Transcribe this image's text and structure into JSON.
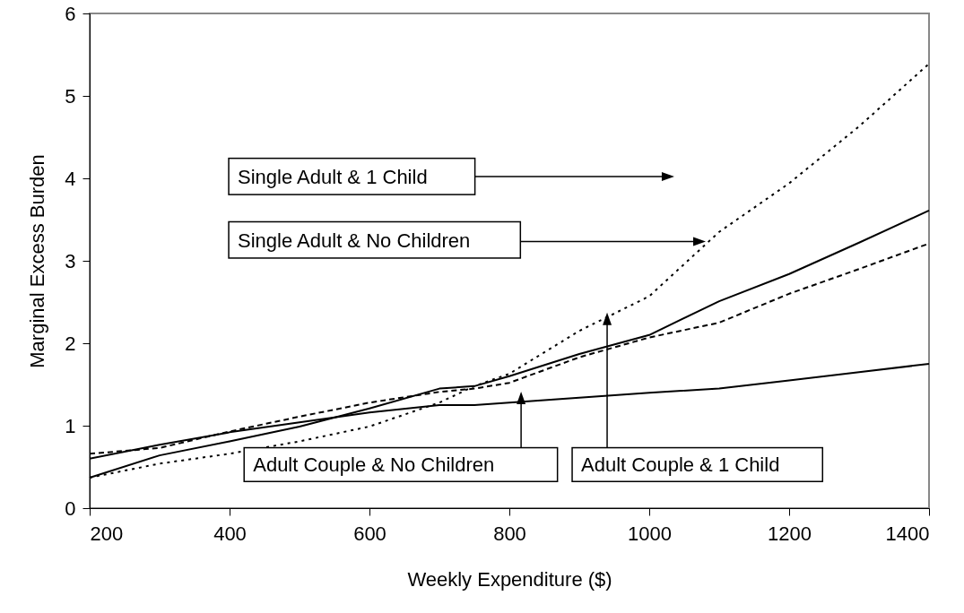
{
  "chart_data": {
    "type": "line",
    "xlabel": "Weekly Expenditure ($)",
    "ylabel": "Marginal Excess Burden",
    "x": [
      200,
      300,
      400,
      500,
      600,
      700,
      750,
      800,
      900,
      1000,
      1100,
      1200,
      1300,
      1400
    ],
    "series": [
      {
        "name": "Single Adult & 1 Child",
        "color": "#000000",
        "line_style": "dotted",
        "values": [
          0.37,
          0.54,
          0.66,
          0.81,
          0.99,
          1.28,
          1.48,
          1.63,
          2.15,
          2.57,
          3.35,
          3.94,
          4.63,
          5.39
        ]
      },
      {
        "name": "Single Adult & No Children",
        "color": "#000000",
        "line_style": "solid",
        "values": [
          0.37,
          0.64,
          0.81,
          0.99,
          1.21,
          1.45,
          1.48,
          1.6,
          1.87,
          2.1,
          2.51,
          2.84,
          3.22,
          3.61
        ]
      },
      {
        "name": "Adult Couple & No Children",
        "color": "#000000",
        "line_style": "solid",
        "values": [
          0.6,
          0.77,
          0.92,
          1.04,
          1.16,
          1.25,
          1.25,
          1.28,
          1.34,
          1.4,
          1.45,
          1.55,
          1.65,
          1.75
        ]
      },
      {
        "name": "Adult Couple & 1 Child",
        "color": "#000000",
        "line_style": "dashed",
        "values": [
          0.66,
          0.73,
          0.93,
          1.11,
          1.28,
          1.41,
          1.45,
          1.52,
          1.83,
          2.07,
          2.25,
          2.6,
          2.9,
          3.21
        ]
      }
    ],
    "xlim": [
      200,
      1400
    ],
    "xticks": [
      200,
      400,
      600,
      800,
      1000,
      1200,
      1400
    ],
    "ylim": [
      0,
      6
    ],
    "yticks": [
      0,
      1,
      2,
      3,
      4,
      5,
      6
    ],
    "grid": false,
    "legend": false
  }
}
